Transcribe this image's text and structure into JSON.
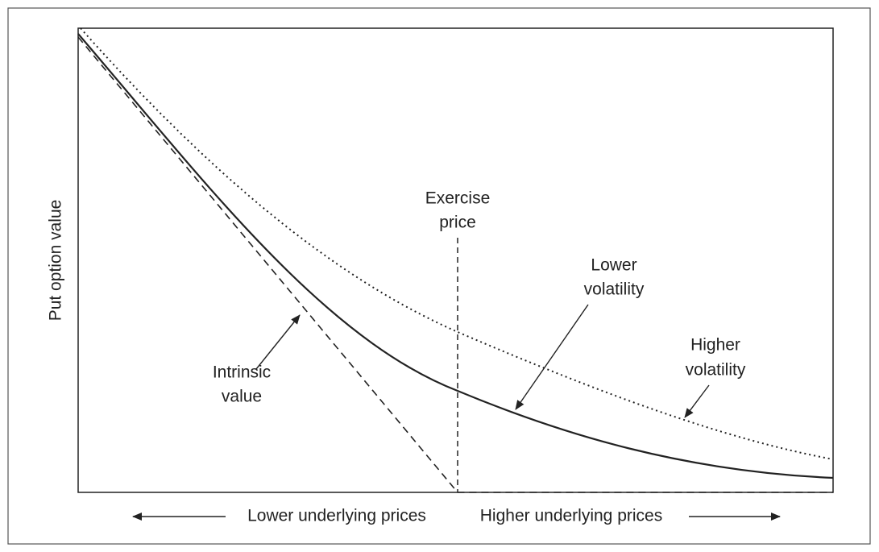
{
  "y_axis_label": "Put option value",
  "x_axis": {
    "left_label": "Lower underlying prices",
    "right_label": "Higher underlying prices"
  },
  "annotations": {
    "exercise_price": [
      "Exercise",
      "price"
    ],
    "lower_volatility": [
      "Lower",
      "volatility"
    ],
    "higher_volatility": [
      "Higher",
      "volatility"
    ],
    "intrinsic_value": [
      "Intrinsic",
      "value"
    ]
  }
}
